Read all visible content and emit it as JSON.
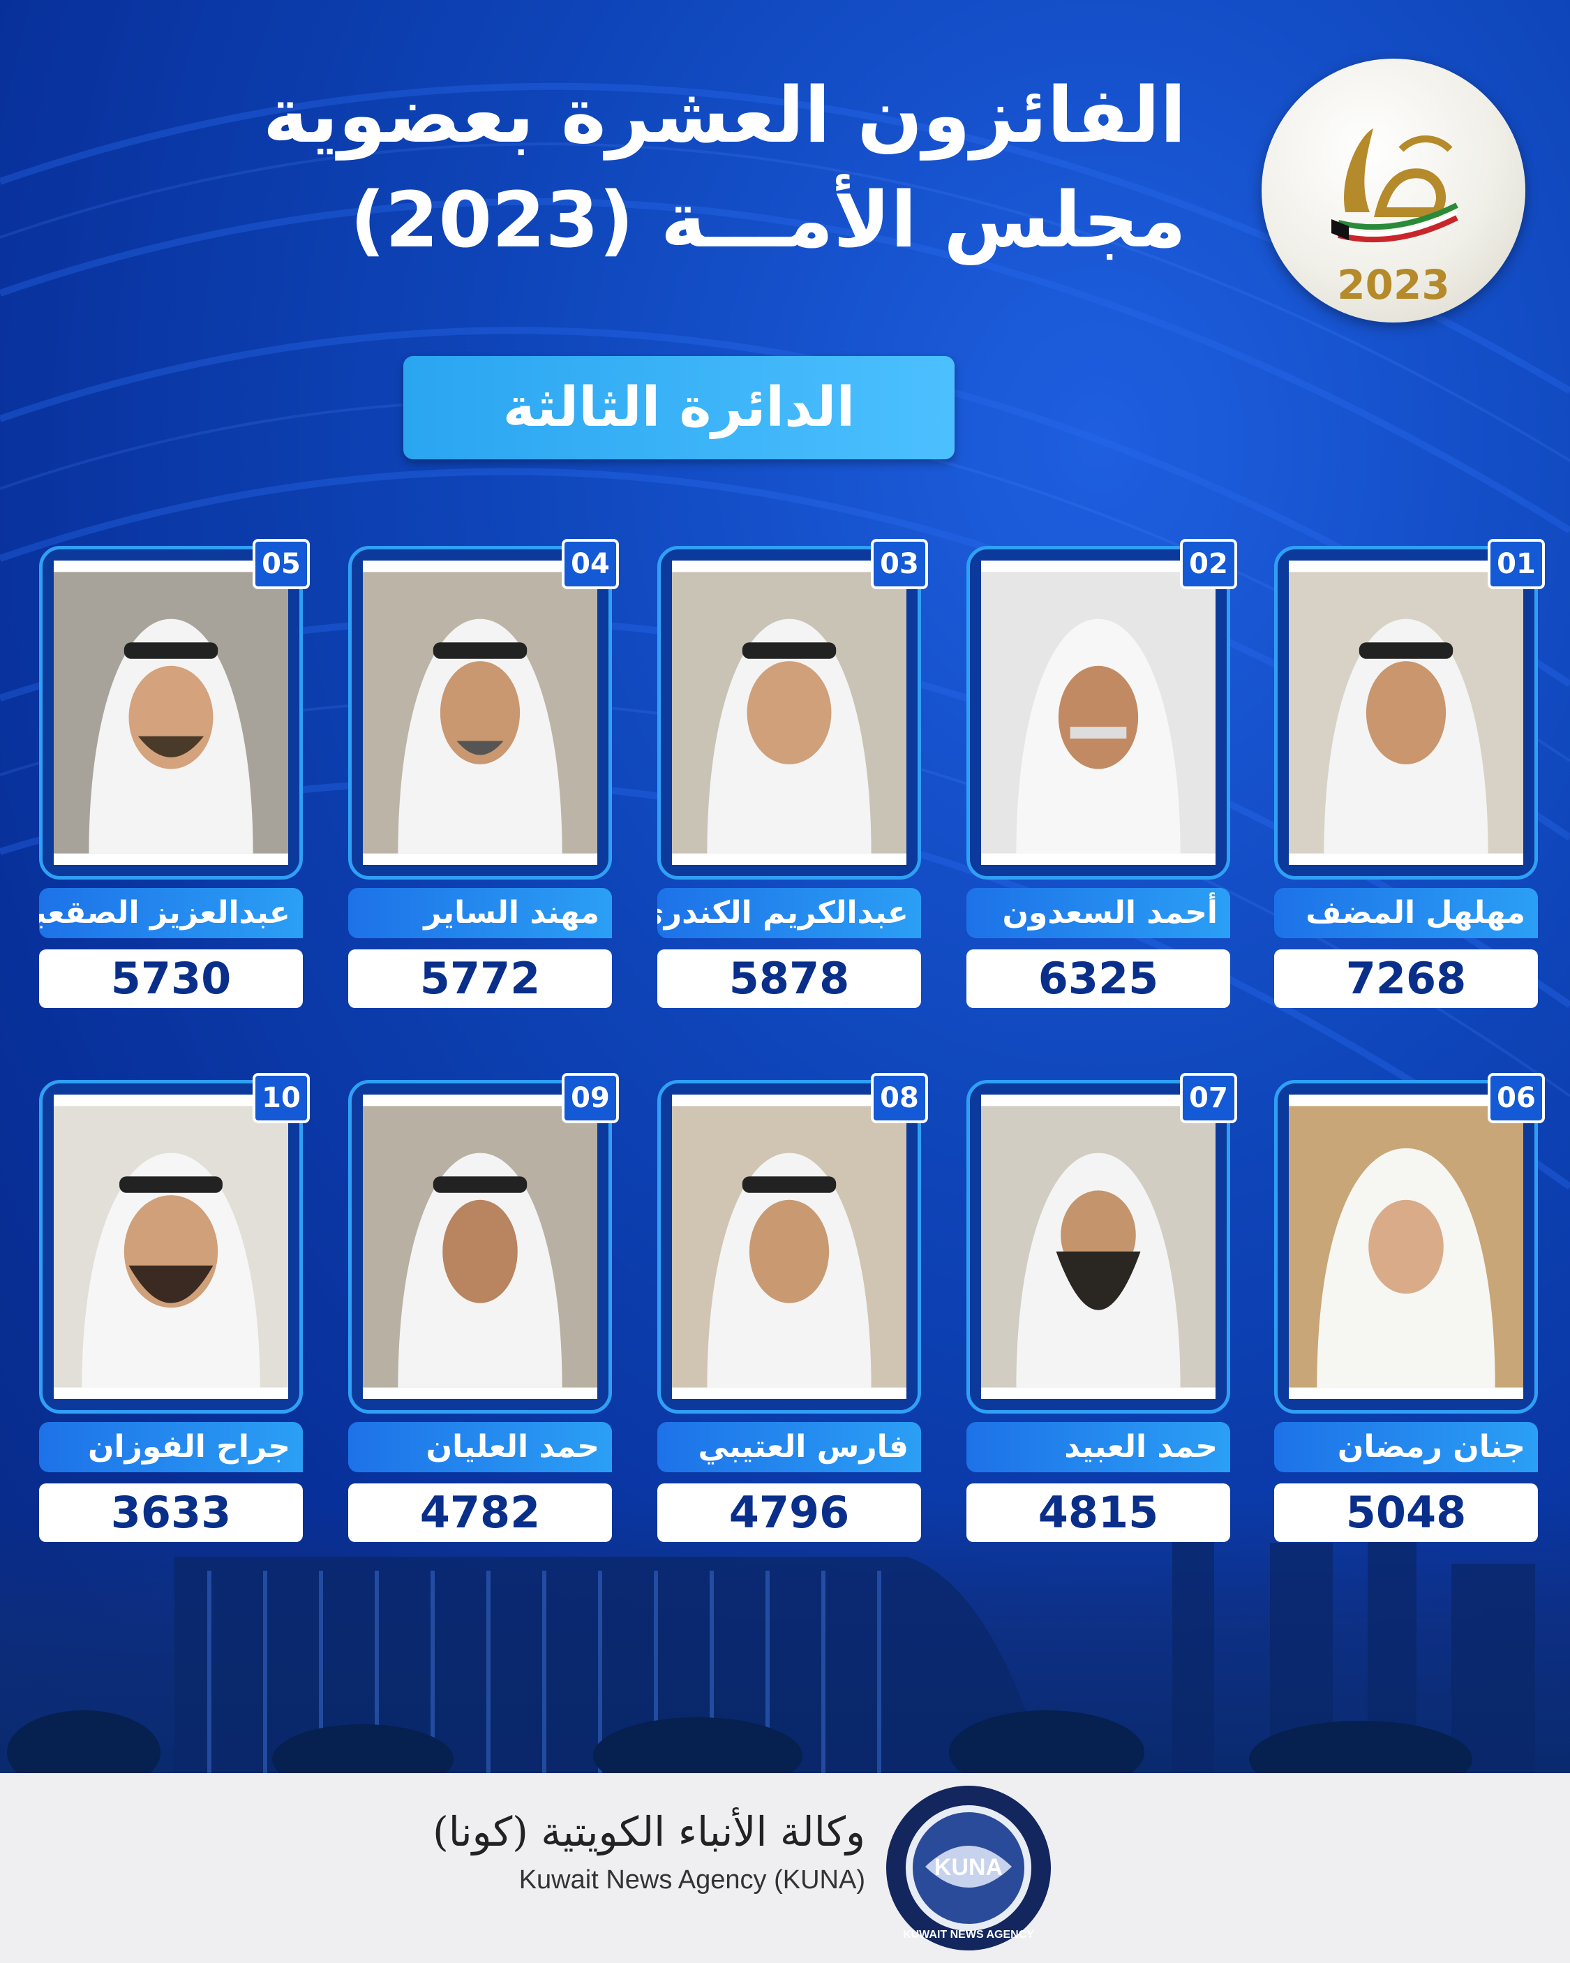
{
  "header": {
    "title_line1": "الفائزون العشرة بعضوية",
    "title_line2": "مجلس الأمـــة (2023)",
    "logo_year": "2023"
  },
  "district": "الدائرة الثالثة",
  "winners": [
    {
      "rank": "01",
      "name": "مهلهل المضف",
      "votes": "7268"
    },
    {
      "rank": "02",
      "name": "أحمد السعدون",
      "votes": "6325"
    },
    {
      "rank": "03",
      "name": "عبدالكريم الكندري",
      "votes": "5878"
    },
    {
      "rank": "04",
      "name": "مهند الساير",
      "votes": "5772"
    },
    {
      "rank": "05",
      "name": "عبدالعزيز الصقعبي",
      "votes": "5730"
    },
    {
      "rank": "06",
      "name": "جنان رمضان",
      "votes": "5048"
    },
    {
      "rank": "07",
      "name": "حمد العبيد",
      "votes": "4815"
    },
    {
      "rank": "08",
      "name": "فارس العتيبي",
      "votes": "4796"
    },
    {
      "rank": "09",
      "name": "حمد العليان",
      "votes": "4782"
    },
    {
      "rank": "10",
      "name": "جراح الفوزان",
      "votes": "3633"
    }
  ],
  "footer": {
    "agency_ar": "وكالة الأنباء الكويتية (كونا)",
    "agency_en": "Kuwait News Agency (KUNA)",
    "logo_text": "KUNA",
    "logo_ring_text": "KUWAIT NEWS AGENCY"
  },
  "colors": {
    "background": "#0c3fae",
    "accent": "#2fa0f5",
    "votes_text": "#0a2f8a",
    "gold": "#b58a2a"
  }
}
